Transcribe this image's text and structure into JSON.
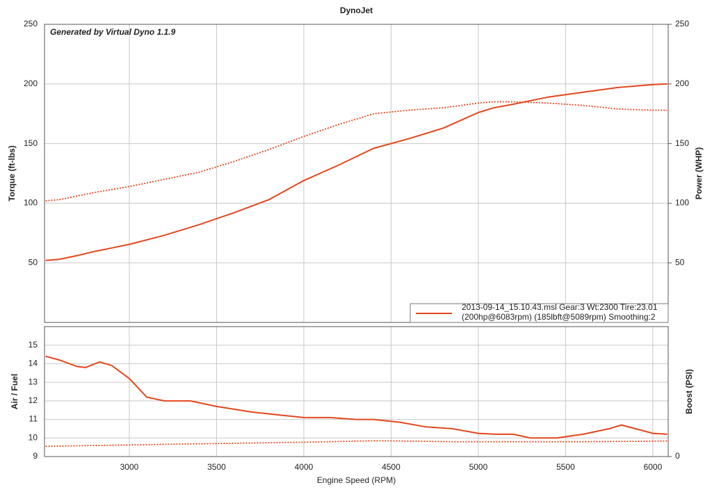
{
  "chart_data": [
    {
      "type": "line",
      "title": "DynoJet",
      "annotation": "Generated by Virtual Dyno 1.1.9",
      "y_label": "Torque (ft-lbs)",
      "y2_label": "Power (WHP)",
      "legend_text": [
        "2013-09-14_15.10.43.msl Gear:3 Wt:2300 Tire:23.01",
        "(200hp@6083rpm) (185lbft@5089rpm) Smoothing:2"
      ],
      "x": [
        2520,
        2600,
        2700,
        2800,
        2900,
        3000,
        3200,
        3400,
        3600,
        3800,
        4000,
        4200,
        4400,
        4600,
        4800,
        5000,
        5089,
        5200,
        5400,
        5600,
        5800,
        6000,
        6083
      ],
      "xlim": [
        2514,
        6088
      ],
      "xticks": [
        3000,
        3500,
        4000,
        4500,
        5000,
        5500,
        6000
      ],
      "ylim": [
        0,
        250
      ],
      "yticks": [
        50,
        100,
        150,
        200,
        250
      ],
      "y2lim": [
        0,
        250
      ],
      "y2ticks": [
        50,
        100,
        150,
        200,
        250
      ],
      "grid": true,
      "series": [
        {
          "color": "#e4461c",
          "line_style": "solid",
          "axis": "y2",
          "values": [
            52,
            53,
            56,
            59.5,
            62.5,
            65.5,
            73,
            82,
            92,
            103,
            119,
            132,
            146,
            154,
            163,
            176,
            180,
            183,
            189,
            193,
            197,
            199.5,
            200
          ]
        },
        {
          "color": "#e4461c",
          "line_style": "dotted",
          "values": [
            102,
            103,
            106,
            109,
            111.5,
            114,
            120,
            126,
            135,
            145,
            156,
            166,
            175,
            178,
            180,
            184,
            185,
            185,
            184,
            182,
            179,
            178,
            178
          ]
        }
      ]
    },
    {
      "type": "line",
      "x_label": "Engine Speed (RPM)",
      "y_label": "Air / Fuel",
      "y2_label": "Boost (PSI)",
      "x": [
        2520,
        2600,
        2700,
        2750,
        2830,
        2900,
        3000,
        3100,
        3200,
        3350,
        3500,
        3700,
        3900,
        4000,
        4150,
        4300,
        4400,
        4550,
        4700,
        4850,
        5000,
        5100,
        5200,
        5300,
        5450,
        5600,
        5750,
        5820,
        5900,
        6000,
        6083
      ],
      "xlim": [
        2514,
        6088
      ],
      "xticks": [
        3000,
        3500,
        4000,
        4500,
        5000,
        5500,
        6000
      ],
      "ylim": [
        9,
        16
      ],
      "yticks": [
        9,
        10,
        11,
        12,
        13,
        14,
        15
      ],
      "y2lim": [
        0,
        7
      ],
      "y2ticks": [
        0
      ],
      "grid": true,
      "series": [
        {
          "color": "#e4461c",
          "line_style": "solid",
          "values": [
            14.4,
            14.2,
            13.85,
            13.8,
            14.1,
            13.9,
            13.2,
            12.2,
            12.0,
            12.0,
            11.7,
            11.4,
            11.2,
            11.1,
            11.1,
            11.0,
            11.0,
            10.85,
            10.6,
            10.5,
            10.25,
            10.2,
            10.2,
            10.0,
            10.0,
            10.2,
            10.5,
            10.7,
            10.5,
            10.25,
            10.2
          ]
        },
        {
          "color": "#e4461c",
          "line_style": "dotted",
          "axis": "y2",
          "values": [
            0.55,
            0.56,
            0.58,
            0.59,
            0.6,
            0.61,
            0.62,
            0.64,
            0.66,
            0.68,
            0.7,
            0.73,
            0.76,
            0.77,
            0.8,
            0.83,
            0.85,
            0.84,
            0.82,
            0.8,
            0.8,
            0.8,
            0.8,
            0.8,
            0.8,
            0.8,
            0.81,
            0.82,
            0.82,
            0.83,
            0.84
          ]
        }
      ]
    }
  ]
}
